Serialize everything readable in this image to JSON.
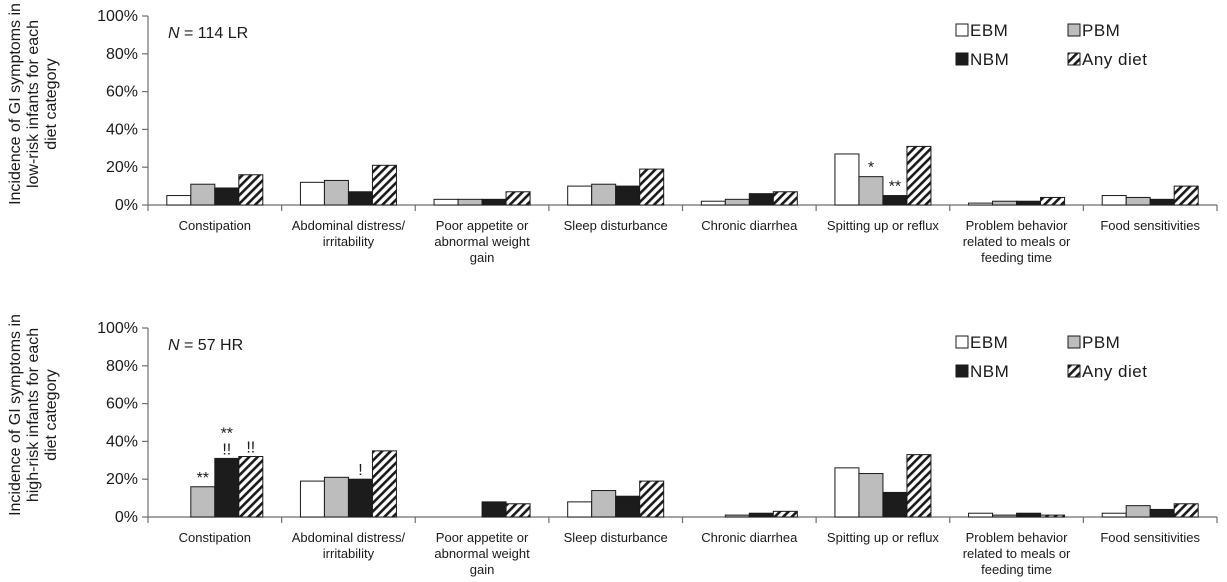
{
  "chart_data": [
    {
      "type": "bar",
      "ylabel": "Incidence of GI symptoms in low-risk infants for each diet category",
      "ylabel_lines": [
        "Incidence of GI symptoms in",
        "low-risk infants for each",
        "diet category"
      ],
      "annotation_prefix": "N",
      "annotation_suffix": "= 114 LR",
      "ylim": [
        0,
        100
      ],
      "yticks": [
        "0%",
        "20%",
        "40%",
        "60%",
        "80%",
        "100%"
      ],
      "legend_position": "top-right",
      "grid": false,
      "categories": [
        [
          "Constipation"
        ],
        [
          "Abdominal distress/",
          "irritability"
        ],
        [
          "Poor appetite or",
          "abnormal weight",
          "gain"
        ],
        [
          "Sleep disturbance"
        ],
        [
          "Chronic diarrhea"
        ],
        [
          "Spitting up or reflux"
        ],
        [
          "Problem behavior",
          "related to meals or",
          "feeding time"
        ],
        [
          "Food sensitivities"
        ]
      ],
      "series": [
        {
          "name": "EBM",
          "style": "white",
          "values": [
            5,
            12,
            3,
            10,
            2,
            27,
            1,
            5
          ]
        },
        {
          "name": "PBM",
          "style": "gray",
          "values": [
            11,
            13,
            3,
            11,
            3,
            15,
            2,
            4
          ]
        },
        {
          "name": "NBM",
          "style": "black",
          "values": [
            9,
            7,
            3,
            10,
            6,
            5,
            2,
            3
          ]
        },
        {
          "name": "Any diet",
          "style": "hatch",
          "values": [
            16,
            21,
            7,
            19,
            7,
            31,
            4,
            10
          ]
        }
      ],
      "marks": [
        {
          "category": 5,
          "series": 1,
          "lines": [
            "*"
          ]
        },
        {
          "category": 5,
          "series": 2,
          "lines": [
            "**"
          ]
        }
      ]
    },
    {
      "type": "bar",
      "ylabel": "Incidence of GI symptoms in high-risk infants for each diet category",
      "ylabel_lines": [
        "Incidence of GI symptoms in",
        "high-risk infants for each",
        "diet category"
      ],
      "annotation_prefix": "N",
      "annotation_suffix": "= 57 HR",
      "ylim": [
        0,
        100
      ],
      "yticks": [
        "0%",
        "20%",
        "40%",
        "60%",
        "80%",
        "100%"
      ],
      "legend_position": "top-right",
      "grid": false,
      "categories": [
        [
          "Constipation"
        ],
        [
          "Abdominal distress/",
          "irritability"
        ],
        [
          "Poor appetite or",
          "abnormal weight",
          "gain"
        ],
        [
          "Sleep disturbance"
        ],
        [
          "Chronic diarrhea"
        ],
        [
          "Spitting up or reflux"
        ],
        [
          "Problem behavior",
          "related to meals or",
          "feeding time"
        ],
        [
          "Food sensitivities"
        ]
      ],
      "series": [
        {
          "name": "EBM",
          "style": "white",
          "values": [
            0,
            19,
            0,
            8,
            0,
            26,
            2,
            2
          ]
        },
        {
          "name": "PBM",
          "style": "gray",
          "values": [
            16,
            21,
            0,
            14,
            1,
            23,
            1,
            6
          ]
        },
        {
          "name": "NBM",
          "style": "black",
          "values": [
            31,
            20,
            8,
            11,
            2,
            13,
            2,
            4
          ]
        },
        {
          "name": "Any diet",
          "style": "hatch",
          "values": [
            32,
            35,
            7,
            19,
            3,
            33,
            1,
            7
          ]
        }
      ],
      "marks": [
        {
          "category": 0,
          "series": 1,
          "lines": [
            "**"
          ]
        },
        {
          "category": 0,
          "series": 2,
          "lines": [
            "**",
            "!!"
          ]
        },
        {
          "category": 0,
          "series": 3,
          "lines": [
            "!!"
          ]
        },
        {
          "category": 1,
          "series": 2,
          "lines": [
            "!"
          ]
        }
      ]
    }
  ],
  "colors": {
    "white": "#ffffff",
    "gray": "#bdbdbd",
    "black": "#1c1c1c",
    "outline": "#1a1a1a",
    "axis": "#6e6e6e"
  }
}
